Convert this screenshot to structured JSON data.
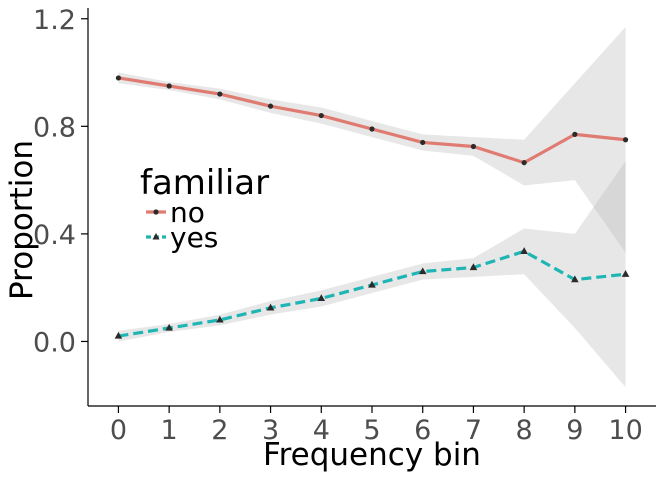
{
  "chart_data": {
    "type": "line",
    "title": "",
    "xlabel": "Frequency bin",
    "ylabel": "Proportion",
    "x": [
      0,
      1,
      2,
      3,
      4,
      5,
      6,
      7,
      8,
      9,
      10
    ],
    "x_tick_labels": [
      "0",
      "1",
      "2",
      "3",
      "4",
      "5",
      "6",
      "7",
      "8",
      "9",
      "10"
    ],
    "y_ticks": [
      0.0,
      0.4,
      0.8,
      1.2
    ],
    "y_tick_labels": [
      "0.0",
      "0.4",
      "0.8",
      "1.2"
    ],
    "xlim": [
      -0.6,
      10.6
    ],
    "ylim": [
      -0.24,
      1.24
    ],
    "grid": false,
    "legend": {
      "title": "familiar",
      "placement": "left-center"
    },
    "series": [
      {
        "name": "no",
        "color": "#e07b72",
        "line_style": "solid",
        "marker": "circle",
        "values": [
          0.98,
          0.95,
          0.92,
          0.875,
          0.84,
          0.79,
          0.74,
          0.725,
          0.665,
          0.77,
          0.75
        ],
        "ci_lower": [
          0.96,
          0.935,
          0.9,
          0.85,
          0.81,
          0.76,
          0.71,
          0.69,
          0.58,
          0.6,
          0.33
        ],
        "ci_upper": [
          1.0,
          0.965,
          0.94,
          0.9,
          0.87,
          0.82,
          0.77,
          0.76,
          0.75,
          0.96,
          1.17
        ]
      },
      {
        "name": "yes",
        "color": "#1fb5b5",
        "line_style": "dashed",
        "marker": "triangle",
        "values": [
          0.02,
          0.05,
          0.08,
          0.125,
          0.16,
          0.21,
          0.26,
          0.275,
          0.335,
          0.23,
          0.25
        ],
        "ci_lower": [
          0.0,
          0.035,
          0.06,
          0.1,
          0.13,
          0.18,
          0.23,
          0.24,
          0.25,
          0.05,
          -0.17
        ],
        "ci_upper": [
          0.04,
          0.065,
          0.1,
          0.15,
          0.19,
          0.24,
          0.29,
          0.31,
          0.42,
          0.4,
          0.67
        ]
      }
    ],
    "ci_color": "#b8b8b8",
    "axis_color": "#000000",
    "tick_text_color": "#4d4d4d",
    "marker_color": "#2b2b2b"
  }
}
